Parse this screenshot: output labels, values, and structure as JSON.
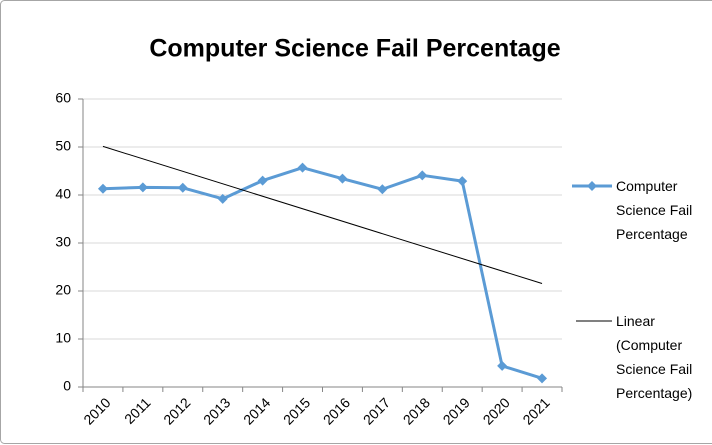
{
  "chart_data": {
    "type": "line",
    "title": "Computer Science Fail Percentage",
    "categories": [
      "2010",
      "2011",
      "2012",
      "2013",
      "2014",
      "2015",
      "2016",
      "2017",
      "2018",
      "2019",
      "2020",
      "2021"
    ],
    "series": [
      {
        "name": "Computer Science Fail Percentage",
        "color": "#5b9bd5",
        "values": [
          41.3,
          41.6,
          41.5,
          39.2,
          43.0,
          45.7,
          43.4,
          41.2,
          44.1,
          42.9,
          4.4,
          1.8
        ]
      }
    ],
    "trendline": {
      "name": "Linear (Computer Science Fail Percentage)",
      "type": "linear",
      "color": "#000000"
    },
    "ylim": [
      0,
      60
    ],
    "yticks": [
      0,
      10,
      20,
      30,
      40,
      50,
      60
    ],
    "grid": true,
    "legend": "right"
  }
}
